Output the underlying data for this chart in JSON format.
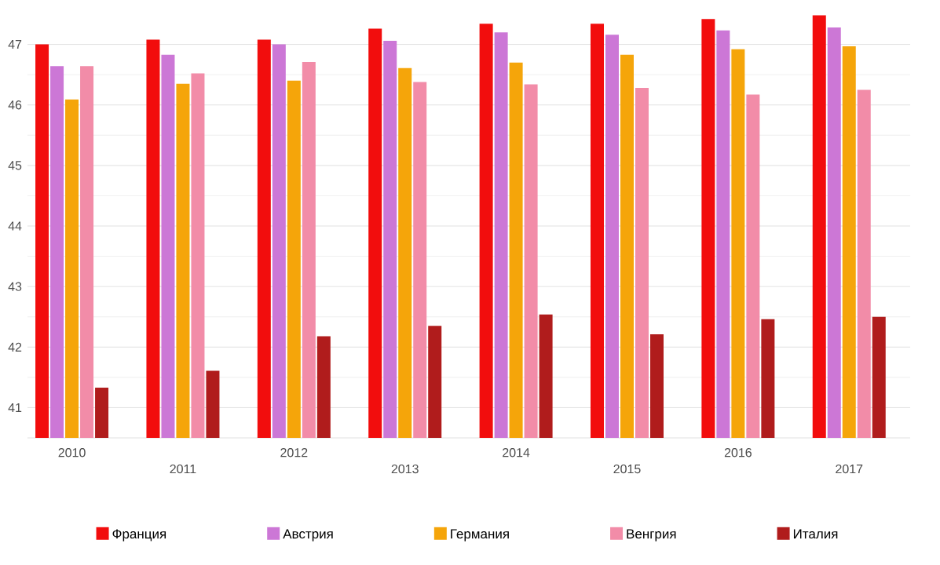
{
  "chart_data": {
    "type": "bar",
    "categories": [
      "2010",
      "2011",
      "2012",
      "2013",
      "2014",
      "2015",
      "2016",
      "2017"
    ],
    "series": [
      {
        "name": "Франция",
        "color": "#f20d0d",
        "values": [
          47.0,
          47.08,
          47.08,
          47.26,
          47.34,
          47.34,
          47.42,
          47.48
        ]
      },
      {
        "name": "Австрия",
        "color": "#cc77d6",
        "values": [
          46.64,
          46.83,
          47.0,
          47.06,
          47.2,
          47.16,
          47.23,
          47.28
        ]
      },
      {
        "name": "Германия",
        "color": "#f5a50a",
        "values": [
          46.09,
          46.35,
          46.4,
          46.61,
          46.7,
          46.83,
          46.92,
          46.97
        ]
      },
      {
        "name": "Венгрия",
        "color": "#f28ca8",
        "values": [
          46.64,
          46.52,
          46.71,
          46.38,
          46.34,
          46.28,
          46.17,
          46.25
        ]
      },
      {
        "name": "Италия",
        "color": "#b01c1c",
        "values": [
          41.33,
          41.61,
          42.18,
          42.35,
          42.54,
          42.21,
          42.46,
          42.5
        ]
      }
    ],
    "ylim": [
      40.5,
      47.5
    ],
    "yticks": [
      41,
      42,
      43,
      44,
      45,
      46,
      47
    ],
    "grid": "y",
    "legend": "bottom"
  }
}
